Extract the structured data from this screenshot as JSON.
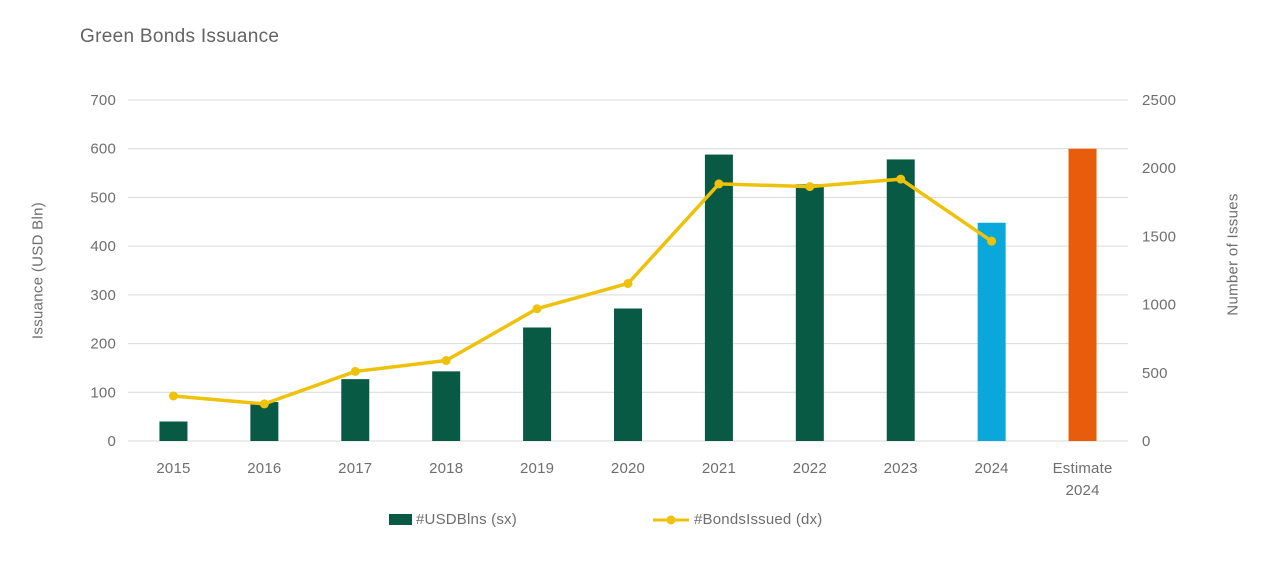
{
  "chart": {
    "title": "Green Bonds Issuance",
    "left_axis": {
      "title": "Issuance (USD Bln)",
      "tick_labels": [
        "0",
        "100",
        "200",
        "300",
        "400",
        "500",
        "600",
        "700"
      ]
    },
    "right_axis": {
      "title": "Number of Issues",
      "tick_labels": [
        "0",
        "500",
        "1000",
        "1500",
        "2000",
        "2500"
      ]
    },
    "legend": {
      "bar_label": "#USDBlns (sx)",
      "line_label": "#BondsIssued (dx)"
    }
  },
  "chart_data": {
    "type": "bar+line combo",
    "categories": [
      "2015",
      "2016",
      "2017",
      "2018",
      "2019",
      "2020",
      "2021",
      "2022",
      "2023",
      "2024",
      "Estimate\n2024"
    ],
    "series": [
      {
        "name": "#USDBlns (sx)",
        "type": "bar",
        "axis": "left",
        "values": [
          40,
          80,
          127,
          143,
          233,
          272,
          588,
          527,
          578,
          448,
          600
        ],
        "bar_colors": [
          "#095A44",
          "#095A44",
          "#095A44",
          "#095A44",
          "#095A44",
          "#095A44",
          "#095A44",
          "#095A44",
          "#095A44",
          "#0AA7DB",
          "#E85D0C"
        ]
      },
      {
        "name": "#BondsIssued (dx)",
        "type": "line",
        "axis": "right",
        "values": [
          330,
          272,
          510,
          590,
          970,
          1155,
          1885,
          1865,
          1920,
          1465,
          null
        ]
      }
    ],
    "left_axis_range": [
      0,
      700
    ],
    "left_axis_step": 100,
    "right_axis_range": [
      0,
      2500
    ],
    "right_axis_step": 500,
    "grid": "horizontal",
    "legend_position": "bottom"
  },
  "colors": {
    "bar_default": "#095A44",
    "bar_2024": "#0AA7DB",
    "bar_estimate": "#E85D0C",
    "line": "#EEC10A",
    "grid": "#D9D9D9",
    "text": "#6E6E6E",
    "background": "#FFFFFF"
  }
}
